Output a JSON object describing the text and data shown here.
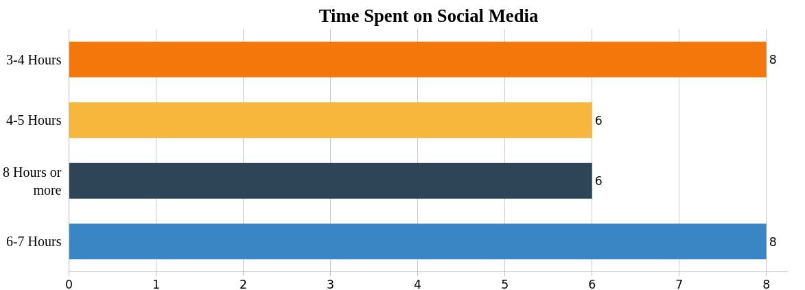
{
  "chart_data": {
    "type": "bar",
    "orientation": "horizontal",
    "title": "Time Spent on Social Media",
    "categories": [
      "3-4 Hours",
      "4-5 Hours",
      "8 Hours or more",
      "6-7 Hours"
    ],
    "values": [
      8,
      6,
      6,
      8
    ],
    "colors": [
      "#f4770b",
      "#f6b73c",
      "#2e4457",
      "#3a86c4"
    ],
    "xlim": [
      0,
      8.25
    ],
    "xticks": [
      0,
      1,
      2,
      3,
      4,
      5,
      6,
      7,
      8
    ],
    "grid": "x",
    "data_labels": true
  }
}
